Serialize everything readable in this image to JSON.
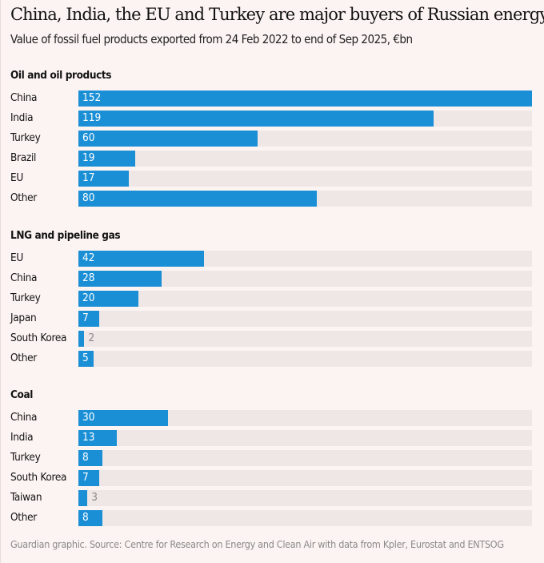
{
  "chart_data": {
    "type": "bar",
    "orientation": "horizontal",
    "title": "China, India, the EU and Turkey are major buyers of Russian energy",
    "subtitle": "Value of fossil fuel products exported from 24 Feb 2022 to end of Sep 2025, €bn",
    "bar_color": "#1a8fd6",
    "track_color": "#efe7e5",
    "xlim": [
      0,
      152
    ],
    "groups": [
      {
        "title": "Oil and oil products",
        "categories": [
          "China",
          "India",
          "Turkey",
          "Brazil",
          "EU",
          "Other"
        ],
        "values": [
          152,
          119,
          60,
          19,
          17,
          80
        ]
      },
      {
        "title": "LNG and pipeline gas",
        "categories": [
          "EU",
          "China",
          "Turkey",
          "Japan",
          "South Korea",
          "Other"
        ],
        "values": [
          42,
          28,
          20,
          7,
          2,
          5
        ]
      },
      {
        "title": "Coal",
        "categories": [
          "China",
          "India",
          "Turkey",
          "South Korea",
          "Taiwan",
          "Other"
        ],
        "values": [
          30,
          13,
          8,
          7,
          3,
          8
        ]
      }
    ],
    "source": "Guardian graphic. Source: Centre for Research on Energy and Clean Air with data from Kpler, Eurostat and ENTSOG"
  }
}
